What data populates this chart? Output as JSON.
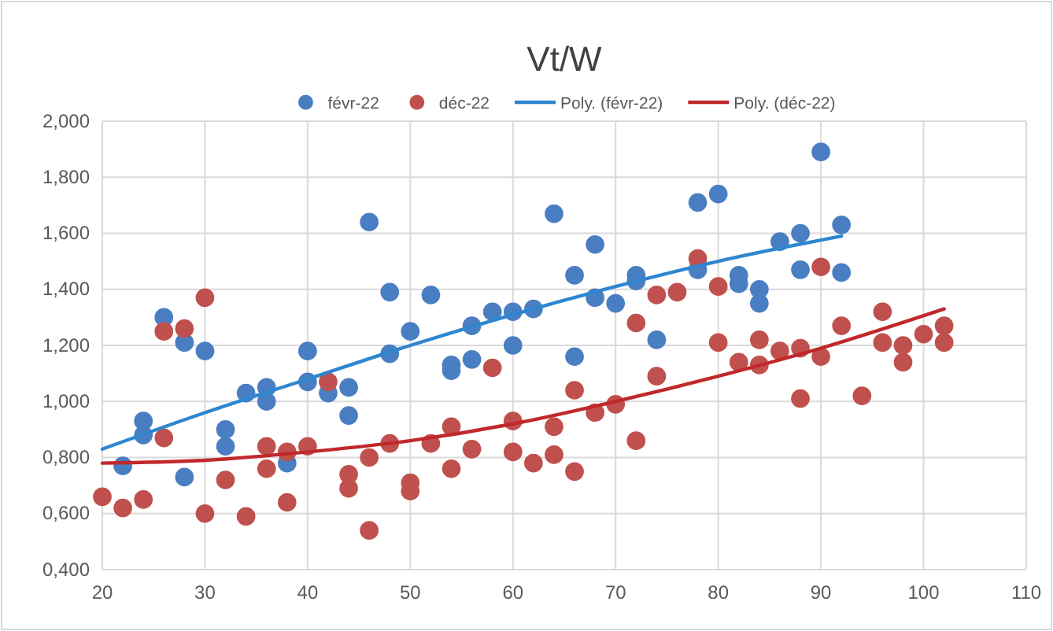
{
  "chart_data": {
    "type": "scatter",
    "title": "Vt/W",
    "legend": "top",
    "grid": true,
    "xlim": [
      20,
      110
    ],
    "xticks": [
      20,
      30,
      40,
      50,
      60,
      70,
      80,
      90,
      100,
      110
    ],
    "ylim": [
      0.4,
      2.0
    ],
    "yticks": [
      {
        "value": 0.4,
        "label": "0,400"
      },
      {
        "value": 0.6,
        "label": "0,600"
      },
      {
        "value": 0.8,
        "label": "0,800"
      },
      {
        "value": 1.0,
        "label": "1,000"
      },
      {
        "value": 1.2,
        "label": "1,200"
      },
      {
        "value": 1.4,
        "label": "1,400"
      },
      {
        "value": 1.6,
        "label": "1,600"
      },
      {
        "value": 1.8,
        "label": "1,800"
      },
      {
        "value": 2.0,
        "label": "2,000"
      }
    ],
    "series": [
      {
        "name": "févr-22",
        "marker": "circle",
        "color": "#4a7ec2",
        "x": [
          22,
          24,
          24,
          26,
          28,
          28,
          30,
          32,
          32,
          34,
          36,
          36,
          38,
          40,
          40,
          42,
          44,
          44,
          46,
          48,
          48,
          50,
          52,
          54,
          54,
          56,
          56,
          58,
          60,
          60,
          62,
          64,
          66,
          66,
          68,
          68,
          70,
          72,
          72,
          74,
          78,
          78,
          80,
          82,
          82,
          84,
          84,
          86,
          88,
          88,
          90,
          92,
          92
        ],
        "values": [
          0.77,
          0.93,
          0.88,
          1.3,
          1.21,
          0.73,
          1.18,
          0.9,
          0.84,
          1.03,
          1.05,
          1.0,
          0.78,
          1.18,
          1.07,
          1.03,
          1.05,
          0.95,
          1.64,
          1.39,
          1.17,
          1.25,
          1.38,
          1.13,
          1.11,
          1.15,
          1.27,
          1.32,
          1.32,
          1.2,
          1.33,
          1.67,
          1.45,
          1.16,
          1.56,
          1.37,
          1.35,
          1.45,
          1.43,
          1.22,
          1.71,
          1.47,
          1.74,
          1.45,
          1.42,
          1.4,
          1.35,
          1.57,
          1.6,
          1.47,
          1.89,
          1.63,
          1.46
        ]
      },
      {
        "name": "déc-22",
        "marker": "circle",
        "color": "#c0504d",
        "x": [
          20,
          22,
          24,
          26,
          26,
          28,
          30,
          30,
          32,
          34,
          36,
          36,
          38,
          38,
          40,
          42,
          44,
          44,
          46,
          46,
          48,
          50,
          50,
          52,
          54,
          54,
          56,
          58,
          60,
          60,
          62,
          64,
          64,
          66,
          66,
          68,
          70,
          72,
          72,
          74,
          74,
          76,
          78,
          80,
          80,
          82,
          84,
          84,
          86,
          88,
          88,
          90,
          90,
          92,
          94,
          96,
          96,
          98,
          98,
          100,
          102,
          102
        ],
        "values": [
          0.66,
          0.62,
          0.65,
          1.25,
          0.87,
          1.26,
          1.37,
          0.6,
          0.72,
          0.59,
          0.84,
          0.76,
          0.82,
          0.64,
          0.84,
          1.07,
          0.74,
          0.69,
          0.8,
          0.54,
          0.85,
          0.71,
          0.68,
          0.85,
          0.91,
          0.76,
          0.83,
          1.12,
          0.93,
          0.82,
          0.78,
          0.91,
          0.81,
          1.04,
          0.75,
          0.96,
          0.99,
          1.28,
          0.86,
          1.38,
          1.09,
          1.39,
          1.51,
          1.41,
          1.21,
          1.14,
          1.22,
          1.13,
          1.18,
          1.19,
          1.01,
          1.48,
          1.16,
          1.27,
          1.02,
          1.32,
          1.21,
          1.2,
          1.14,
          1.24,
          1.27,
          1.21
        ]
      },
      {
        "name": "Poly. (févr-22)",
        "type": "line",
        "marker": "none",
        "color": "#2e86d0",
        "x": [
          20,
          30,
          40,
          50,
          60,
          70,
          80,
          92
        ],
        "values": [
          0.83,
          0.96,
          1.08,
          1.2,
          1.31,
          1.41,
          1.5,
          1.59
        ]
      },
      {
        "name": "Poly. (déc-22)",
        "type": "line",
        "marker": "none",
        "color": "#c0282a",
        "x": [
          20,
          30,
          40,
          50,
          60,
          70,
          80,
          90,
          102
        ],
        "values": [
          0.78,
          0.79,
          0.82,
          0.86,
          0.92,
          1.0,
          1.09,
          1.19,
          1.33
        ]
      }
    ]
  }
}
